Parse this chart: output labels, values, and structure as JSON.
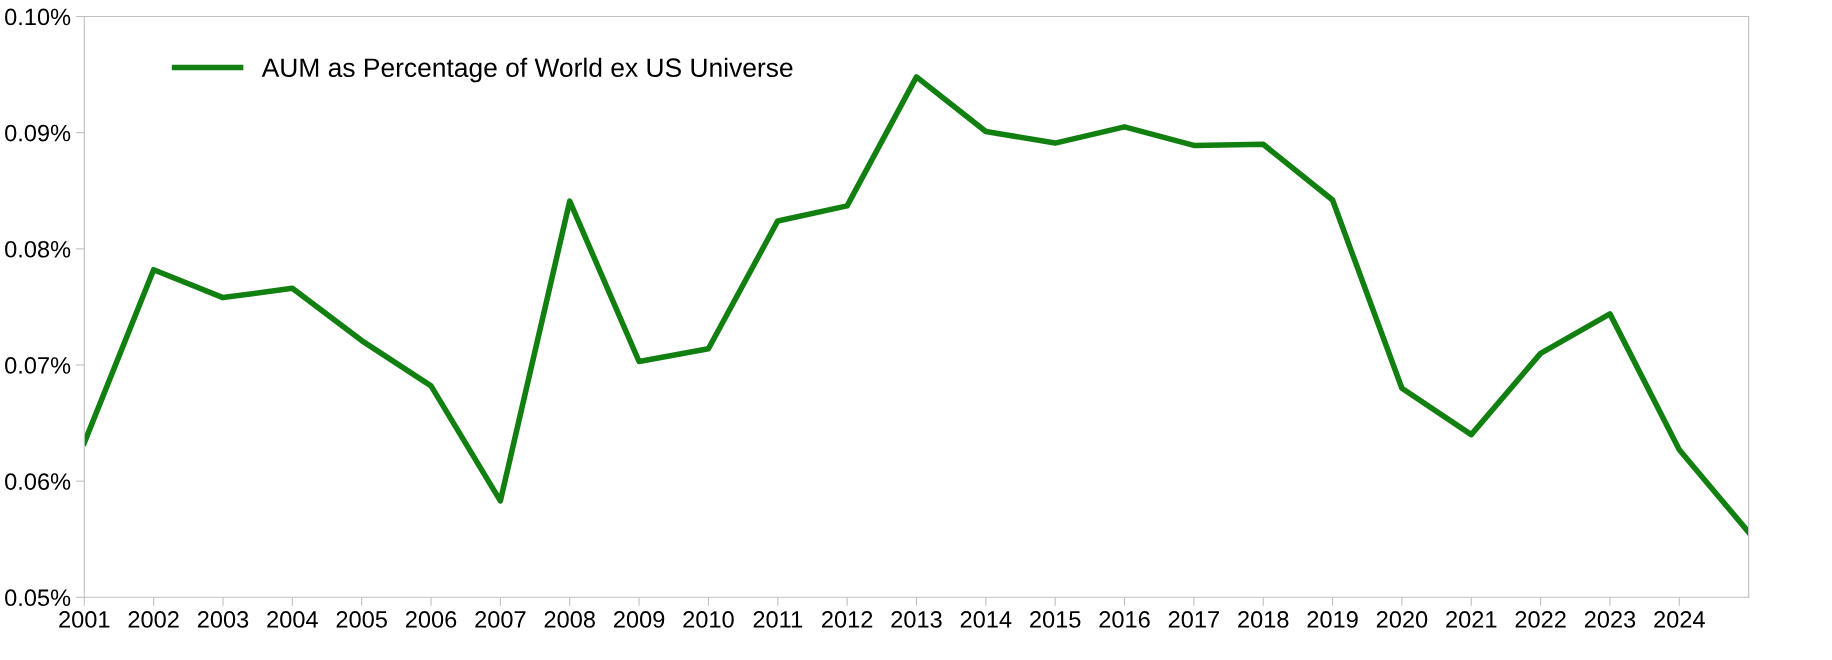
{
  "chart_data": {
    "type": "line",
    "x": [
      2001,
      2002,
      2003,
      2004,
      2005,
      2006,
      2007,
      2008,
      2009,
      2010,
      2011,
      2012,
      2013,
      2014,
      2015,
      2016,
      2017,
      2018,
      2019,
      2020,
      2021,
      2022,
      2023,
      2024,
      2025
    ],
    "series": [
      {
        "name": "AUM as Percentage of World ex US Universe",
        "color": "#118011",
        "values": [
          0.0633,
          0.0782,
          0.0758,
          0.0766,
          0.0721,
          0.0682,
          0.0583,
          0.0841,
          0.0703,
          0.0714,
          0.0824,
          0.0837,
          0.0948,
          0.0901,
          0.0891,
          0.0905,
          0.0889,
          0.089,
          0.0842,
          0.068,
          0.064,
          0.071,
          0.0744,
          0.0627,
          0.0556
        ]
      }
    ],
    "xlim": [
      2001,
      2025
    ],
    "xticks": [
      2001,
      2002,
      2003,
      2004,
      2005,
      2006,
      2007,
      2008,
      2009,
      2010,
      2011,
      2012,
      2013,
      2014,
      2015,
      2016,
      2017,
      2018,
      2019,
      2020,
      2021,
      2022,
      2023,
      2024
    ],
    "ylim": [
      0.05,
      0.1
    ],
    "yticks": [
      {
        "value": 0.05,
        "label": "0.05%"
      },
      {
        "value": 0.06,
        "label": "0.06%"
      },
      {
        "value": 0.07,
        "label": "0.07%"
      },
      {
        "value": 0.08,
        "label": "0.08%"
      },
      {
        "value": 0.09,
        "label": "0.09%"
      },
      {
        "value": 0.1,
        "label": "0.10%"
      }
    ],
    "grid": false,
    "legend": "top left",
    "marker": "none",
    "line_style": "solid"
  }
}
